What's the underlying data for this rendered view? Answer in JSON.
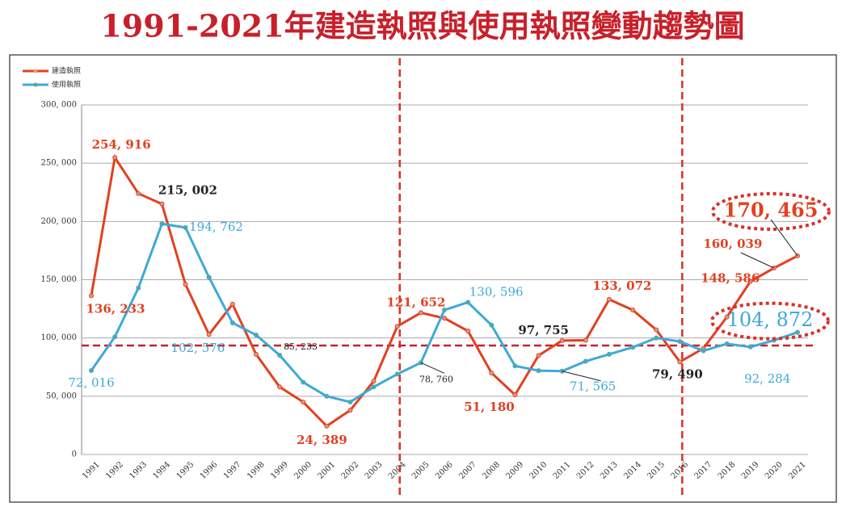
{
  "chart_data": {
    "type": "line",
    "title": "1991-2021年建造執照與使用執照變動趨勢圖",
    "categories": [
      "1991",
      "1992",
      "1993",
      "1994",
      "1995",
      "1996",
      "1997",
      "1998",
      "1999",
      "2000",
      "2001",
      "2002",
      "2003",
      "2004",
      "2005",
      "2006",
      "2007",
      "2008",
      "2009",
      "2010",
      "2011",
      "2012",
      "2013",
      "2014",
      "2015",
      "2016",
      "2017",
      "2018",
      "2019",
      "2020",
      "2021"
    ],
    "series": [
      {
        "name": "建造執照",
        "color": "#e2401f",
        "values": [
          136233,
          254916,
          224000,
          215002,
          146000,
          103000,
          129000,
          86000,
          58000,
          45000,
          24389,
          38000,
          63000,
          110000,
          121652,
          117000,
          106000,
          70000,
          51180,
          85000,
          97755,
          98000,
          133072,
          124000,
          107000,
          79490,
          91000,
          118000,
          148586,
          160039,
          170465
        ],
        "value_labels": [
          "136, 233",
          "254, 916",
          null,
          "215, 002",
          null,
          null,
          null,
          null,
          null,
          null,
          "24, 389",
          null,
          null,
          null,
          "121, 652",
          null,
          null,
          null,
          "51, 180",
          null,
          "97, 755",
          null,
          "133, 072",
          null,
          null,
          "79, 490",
          null,
          null,
          "148, 586",
          "160, 039",
          "170, 465"
        ]
      },
      {
        "name": "使用執照",
        "color": "#3fa9d8",
        "values": [
          72016,
          101000,
          143000,
          198000,
          194762,
          152000,
          113000,
          102576,
          85233,
          62000,
          50000,
          45000,
          58000,
          69000,
          78760,
          124000,
          130596,
          111000,
          76000,
          72000,
          71565,
          80000,
          86000,
          92000,
          100000,
          97000,
          89000,
          95000,
          92284,
          98000,
          104872
        ],
        "value_labels": [
          "72, 016",
          null,
          null,
          null,
          "194, 762",
          null,
          null,
          "102, 576",
          "85, 233",
          null,
          null,
          null,
          null,
          null,
          "78, 760",
          null,
          "130, 596",
          null,
          null,
          null,
          "71, 565",
          null,
          null,
          null,
          null,
          null,
          null,
          null,
          "92, 284",
          null,
          "104, 872"
        ]
      }
    ],
    "ylim": [
      0,
      300000
    ],
    "yticks": [
      0,
      {
        "value": 50000,
        "label": "50, 000"
      },
      {
        "value": 100000,
        "label": "100, 000"
      },
      {
        "value": 150000,
        "label": "150, 000"
      },
      {
        "value": 200000,
        "label": "200, 000"
      },
      {
        "value": 250000,
        "label": "250, 000"
      },
      {
        "value": 300000,
        "label": "300, 000"
      }
    ],
    "reference_line": 93500,
    "grid": true,
    "legend": "upper left"
  }
}
